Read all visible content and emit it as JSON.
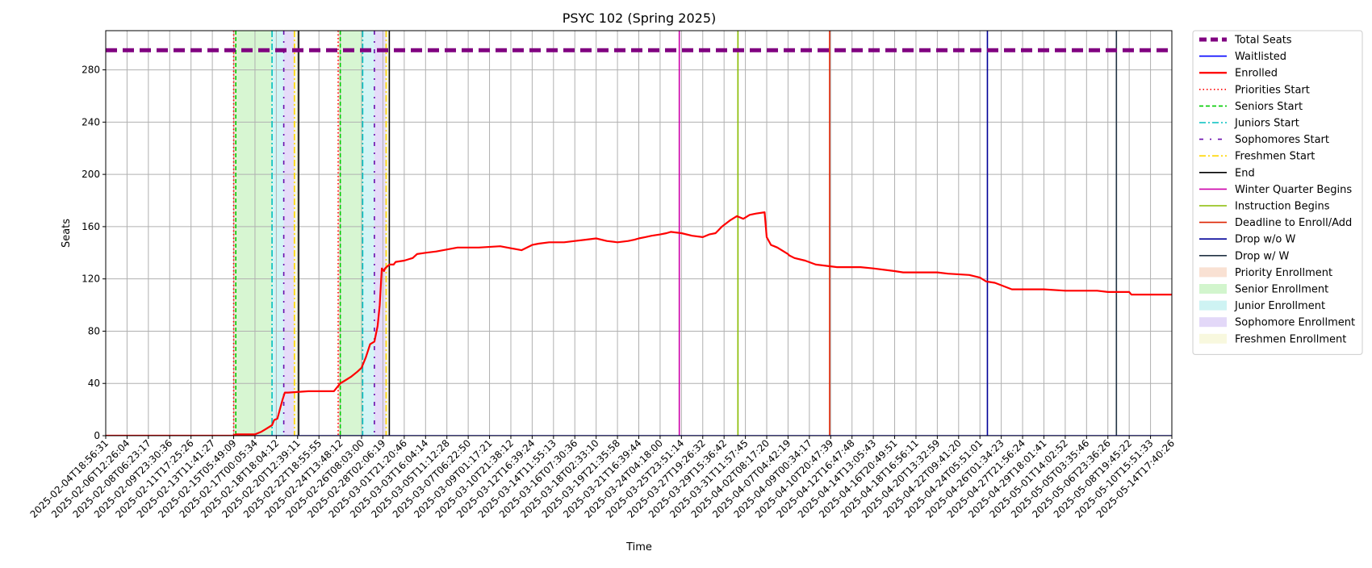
{
  "chart_data": {
    "type": "line",
    "title": "PSYC 102 (Spring 2025)",
    "xlabel": "Time",
    "ylabel": "Seats",
    "ylim": [
      0,
      310
    ],
    "yticks": [
      0,
      40,
      80,
      120,
      160,
      200,
      240,
      280
    ],
    "grid": true,
    "legend_position": "outside-right",
    "xtick_labels": [
      "2025-02-04T18:56:31",
      "2025-02-06T12:26:04",
      "2025-02-08T06:23:17",
      "2025-02-09T23:30:36",
      "2025-02-11T17:25:26",
      "2025-02-13T11:41:27",
      "2025-02-15T05:49:09",
      "2025-02-17T00:05:34",
      "2025-02-18T18:04:12",
      "2025-02-20T12:39:11",
      "2025-02-22T18:55:55",
      "2025-02-24T13:48:12",
      "2025-02-26T08:03:00",
      "2025-02-28T02:06:19",
      "2025-03-01T21:20:46",
      "2025-03-03T16:04:14",
      "2025-03-05T11:12:28",
      "2025-03-07T06:22:50",
      "2025-03-09T01:17:21",
      "2025-03-10T21:38:12",
      "2025-03-12T16:39:24",
      "2025-03-14T11:55:13",
      "2025-03-16T07:30:36",
      "2025-03-18T02:33:10",
      "2025-03-19T21:35:58",
      "2025-03-21T16:39:44",
      "2025-03-24T04:18:00",
      "2025-03-25T23:51:14",
      "2025-03-27T19:26:32",
      "2025-03-29T15:36:42",
      "2025-03-31T11:57:45",
      "2025-04-02T08:17:20",
      "2025-04-07T04:42:19",
      "2025-04-09T00:34:17",
      "2025-04-10T20:47:39",
      "2025-04-12T16:47:48",
      "2025-04-14T13:05:43",
      "2025-04-16T20:49:51",
      "2025-04-18T16:56:11",
      "2025-04-20T13:32:59",
      "2025-04-22T09:41:20",
      "2025-04-24T05:51:01",
      "2025-04-26T01:34:23",
      "2025-04-27T21:56:24",
      "2025-04-29T18:01:41",
      "2025-05-01T14:02:52",
      "2025-05-05T03:35:46",
      "2025-05-06T23:36:26",
      "2025-05-08T19:45:22",
      "2025-05-10T15:51:33",
      "2025-05-14T17:40:26"
    ],
    "x_range": [
      0,
      50
    ],
    "series": [
      {
        "name": "Total Seats",
        "color": "#800080",
        "style": "dashed-thick",
        "x": [
          0,
          50
        ],
        "y": [
          295,
          295
        ]
      },
      {
        "name": "Waitlisted",
        "color": "#0000ff",
        "style": "solid",
        "x": [
          0,
          50
        ],
        "y": [
          0,
          0
        ]
      },
      {
        "name": "Enrolled",
        "color": "#ff0000",
        "style": "solid",
        "x": [
          0,
          6.0,
          6.1,
          7.0,
          7.3,
          7.5,
          7.8,
          7.9,
          8.05,
          8.2,
          8.3,
          8.4,
          8.55,
          9.5,
          10.7,
          11.0,
          11.2,
          11.5,
          11.8,
          12.0,
          12.2,
          12.4,
          12.6,
          12.75,
          12.85,
          12.95,
          13.05,
          13.1,
          13.3,
          13.5,
          13.6,
          14.0,
          14.4,
          14.6,
          15.0,
          15.5,
          16.5,
          17.0,
          17.5,
          18.5,
          19.5,
          20.0,
          20.3,
          20.8,
          21.5,
          22.0,
          22.5,
          23.0,
          23.5,
          24.0,
          24.5,
          24.8,
          25.0,
          25.3,
          25.6,
          26.0,
          26.3,
          26.5,
          27.0,
          27.5,
          28.0,
          28.3,
          28.6,
          28.9,
          29.3,
          29.6,
          29.9,
          30.2,
          30.5,
          30.9,
          31.0,
          31.2,
          31.35,
          31.5,
          31.7,
          31.9,
          32.0,
          32.05,
          32.3,
          32.8,
          33.3,
          33.8,
          34.3,
          34.7,
          35.0,
          35.4,
          36.0,
          37.0,
          37.4,
          37.6,
          38.5,
          39.0,
          39.5,
          40.5,
          41.0,
          41.3,
          41.7,
          42.5,
          43.0,
          44.0,
          45.0,
          46.0,
          46.5,
          47.0,
          48.0,
          48.1,
          49.0,
          50.0
        ],
        "y": [
          0,
          0,
          1,
          1,
          3,
          5,
          8,
          12,
          13,
          22,
          28,
          33,
          33,
          34,
          34,
          40,
          42,
          45,
          49,
          52,
          60,
          70,
          72,
          84,
          100,
          128,
          126,
          128,
          131,
          131,
          133,
          134,
          136,
          139,
          140,
          141,
          144,
          144,
          144,
          145,
          142,
          146,
          147,
          148,
          148,
          149,
          150,
          151,
          149,
          148,
          149,
          150,
          151,
          152,
          153,
          154,
          155,
          156,
          155,
          153,
          152,
          154,
          155,
          160,
          165,
          168,
          166,
          169,
          170,
          171,
          152,
          146,
          145,
          144,
          142,
          140,
          139,
          138,
          136,
          134,
          131,
          130,
          129,
          129,
          129,
          129,
          128,
          126,
          125,
          125,
          125,
          125,
          124,
          123,
          121,
          118,
          117,
          112,
          112,
          112,
          111,
          111,
          111,
          110,
          110,
          108,
          108,
          108
        ]
      }
    ],
    "phases": [
      {
        "label": "Priority Enrollment",
        "color": "#f4c3a8",
        "x_start": 6.0,
        "x_end": 6.1
      },
      {
        "label": "Senior Enrollment",
        "color": "#a6eb9c",
        "x_start": 6.1,
        "x_end": 7.8
      },
      {
        "label": "Junior Enrollment",
        "color": "#9de8e8",
        "x_start": 7.8,
        "x_end": 8.35
      },
      {
        "label": "Sophomore Enrollment",
        "color": "#c7b2f2",
        "x_start": 8.35,
        "x_end": 8.85
      },
      {
        "label": "Freshmen Enrollment",
        "color": "#f2f2bd",
        "x_start": 8.85,
        "x_end": 9.05
      },
      {
        "label": "Priority Enrollment",
        "color": "#f4c3a8",
        "x_start": 10.9,
        "x_end": 11.0
      },
      {
        "label": "Senior Enrollment",
        "color": "#a6eb9c",
        "x_start": 11.0,
        "x_end": 12.05
      },
      {
        "label": "Junior Enrollment",
        "color": "#9de8e8",
        "x_start": 12.05,
        "x_end": 12.6
      },
      {
        "label": "Sophomore Enrollment",
        "color": "#c7b2f2",
        "x_start": 12.6,
        "x_end": 13.15
      },
      {
        "label": "Freshmen Enrollment",
        "color": "#f2f2bd",
        "x_start": 13.15,
        "x_end": 13.3
      }
    ],
    "vlines": [
      {
        "label": "Priorities Start",
        "color": "#ff0000",
        "style": "dotted",
        "x": [
          6.0,
          10.9
        ]
      },
      {
        "label": "Seniors Start",
        "color": "#00cc00",
        "style": "dashed",
        "x": [
          6.1,
          11.0
        ]
      },
      {
        "label": "Juniors Start",
        "color": "#00bfbf",
        "style": "dashdot",
        "x": [
          7.8,
          12.05
        ]
      },
      {
        "label": "Sophomores Start",
        "color": "#6a0dad",
        "style": "dashdot-sparse",
        "x": [
          8.35,
          12.6
        ]
      },
      {
        "label": "Freshmen Start",
        "color": "#ffd700",
        "style": "dashdot",
        "x": [
          8.85,
          13.15
        ]
      },
      {
        "label": "End",
        "color": "#000000",
        "style": "solid",
        "x": [
          9.05,
          13.3
        ]
      },
      {
        "label": "Winter Quarter Begins",
        "color": "#cc00aa",
        "style": "solid",
        "x": [
          26.9
        ]
      },
      {
        "label": "Instruction Begins",
        "color": "#88bb00",
        "style": "solid",
        "x": [
          29.65
        ]
      },
      {
        "label": "Deadline to Enroll/Add",
        "color": "#dd2200",
        "style": "solid",
        "x": [
          33.95
        ]
      },
      {
        "label": "Drop w/o W",
        "color": "#000099",
        "style": "solid",
        "x": [
          41.35
        ]
      },
      {
        "label": "Drop w/ W",
        "color": "#223344",
        "style": "solid",
        "x": [
          47.4
        ]
      }
    ]
  },
  "legend": {
    "items": [
      {
        "label": "Total Seats",
        "kind": "line",
        "color": "#800080",
        "style": "dashed-thick"
      },
      {
        "label": "Waitlisted",
        "kind": "line",
        "color": "#0000ff",
        "style": "solid"
      },
      {
        "label": "Enrolled",
        "kind": "line",
        "color": "#ff0000",
        "style": "solid-thick"
      },
      {
        "label": "Priorities Start",
        "kind": "line",
        "color": "#ff0000",
        "style": "dotted"
      },
      {
        "label": "Seniors Start",
        "kind": "line",
        "color": "#00cc00",
        "style": "dashed"
      },
      {
        "label": "Juniors Start",
        "kind": "line",
        "color": "#00bfbf",
        "style": "dashdot"
      },
      {
        "label": "Sophomores Start",
        "kind": "line",
        "color": "#6a0dad",
        "style": "dashdot-sparse"
      },
      {
        "label": "Freshmen Start",
        "kind": "line",
        "color": "#ffd700",
        "style": "dashdot"
      },
      {
        "label": "End",
        "kind": "line",
        "color": "#000000",
        "style": "solid"
      },
      {
        "label": "Winter Quarter Begins",
        "kind": "line",
        "color": "#cc00aa",
        "style": "solid"
      },
      {
        "label": "Instruction Begins",
        "kind": "line",
        "color": "#88bb00",
        "style": "solid"
      },
      {
        "label": "Deadline to Enroll/Add",
        "kind": "line",
        "color": "#dd2200",
        "style": "solid"
      },
      {
        "label": "Drop w/o W",
        "kind": "line",
        "color": "#000099",
        "style": "solid"
      },
      {
        "label": "Drop w/ W",
        "kind": "line",
        "color": "#223344",
        "style": "solid"
      },
      {
        "label": "Priority Enrollment",
        "kind": "patch",
        "color": "#f4c3a8"
      },
      {
        "label": "Senior Enrollment",
        "kind": "patch",
        "color": "#a6eb9c"
      },
      {
        "label": "Junior Enrollment",
        "kind": "patch",
        "color": "#9de8e8"
      },
      {
        "label": "Sophomore Enrollment",
        "kind": "patch",
        "color": "#c7b2f2"
      },
      {
        "label": "Freshmen Enrollment",
        "kind": "patch",
        "color": "#f2f2bd"
      }
    ]
  }
}
